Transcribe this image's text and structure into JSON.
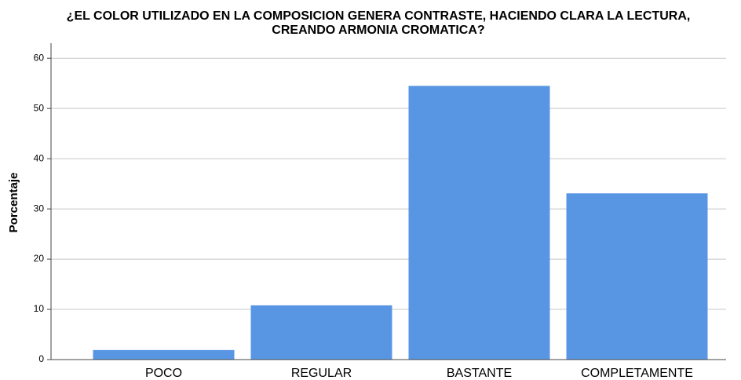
{
  "chart_data": {
    "type": "bar",
    "title": [
      "¿EL COLOR UTILIZADO EN LA COMPOSICION GENERA CONTRASTE, HACIENDO CLARA LA LECTURA,",
      "CREANDO ARMONIA CROMATICA?"
    ],
    "y_label": "Porcentaje",
    "categories": [
      "POCO",
      "REGULAR",
      "BASTANTE",
      "COMPLETAMENTE"
    ],
    "values": [
      1.9,
      10.8,
      54.5,
      33.1
    ],
    "color": "#5896e4",
    "ylim": [
      0,
      63
    ],
    "yticks": [
      0,
      10,
      20,
      30,
      40,
      50,
      60
    ],
    "grid": true
  }
}
